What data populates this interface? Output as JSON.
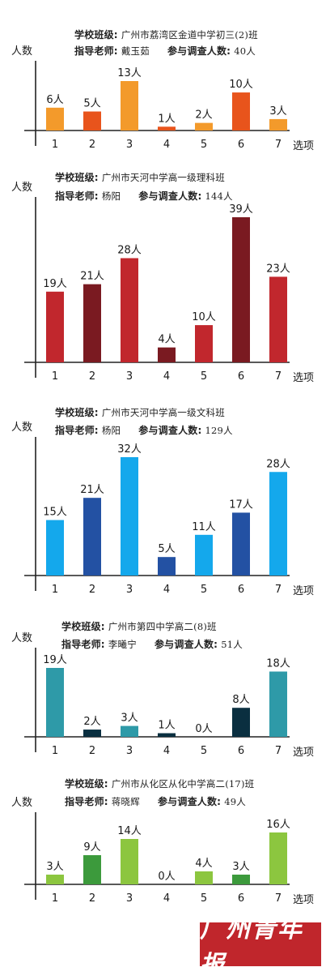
{
  "labels": {
    "school_prefix": "学校班级:",
    "teacher_prefix": "指导老师:",
    "count_prefix": "参与调查人数:"
  },
  "chart_data": [
    {
      "type": "bar",
      "school": "广州市荔湾区金道中学初三(2)班",
      "teacher": "戴玉茹",
      "count": "40人",
      "ylabel": "人数",
      "xlabel": "选项",
      "categories": [
        "1",
        "2",
        "3",
        "4",
        "5",
        "6",
        "7"
      ],
      "values": [
        6,
        5,
        13,
        1,
        2,
        10,
        3
      ],
      "value_labels": [
        "6人",
        "5人",
        "13人",
        "1人",
        "2人",
        "10人",
        "3人"
      ],
      "colors": [
        "#f39a2b",
        "#e8541c",
        "#f39a2b",
        "#e8541c",
        "#f39a2b",
        "#e8541c",
        "#f39a2b"
      ]
    },
    {
      "type": "bar",
      "school": "广州市天河中学高一级理科班",
      "teacher": "杨阳",
      "count": "144人",
      "ylabel": "人数",
      "xlabel": "选项",
      "categories": [
        "1",
        "2",
        "3",
        "4",
        "5",
        "6",
        "7"
      ],
      "values": [
        19,
        21,
        28,
        4,
        10,
        39,
        23
      ],
      "value_labels": [
        "19人",
        "21人",
        "28人",
        "4人",
        "10人",
        "39人",
        "23人"
      ],
      "colors": [
        "#c1272d",
        "#7a1a21",
        "#c1272d",
        "#7a1a21",
        "#c1272d",
        "#7a1a21",
        "#c1272d"
      ]
    },
    {
      "type": "bar",
      "school": "广州市天河中学高一级文科班",
      "teacher": "杨阳",
      "count": "129人",
      "ylabel": "人数",
      "xlabel": "选项",
      "categories": [
        "1",
        "2",
        "3",
        "4",
        "5",
        "6",
        "7"
      ],
      "values": [
        15,
        21,
        32,
        5,
        11,
        17,
        28
      ],
      "value_labels": [
        "15人",
        "21人",
        "32人",
        "5人",
        "11人",
        "17人",
        "28人"
      ],
      "colors": [
        "#14a8ec",
        "#2351a3",
        "#14a8ec",
        "#2351a3",
        "#14a8ec",
        "#2351a3",
        "#14a8ec"
      ]
    },
    {
      "type": "bar",
      "school": "广州市第四中学高二(8)班",
      "teacher": "李曦宁",
      "count": "51人",
      "ylabel": "人数",
      "xlabel": "选项",
      "categories": [
        "1",
        "2",
        "3",
        "4",
        "5",
        "6",
        "7"
      ],
      "values": [
        19,
        2,
        3,
        1,
        0,
        8,
        18
      ],
      "value_labels": [
        "19人",
        "2人",
        "3人",
        "1人",
        "0人",
        "8人",
        "18人"
      ],
      "colors": [
        "#2e9aa8",
        "#0a2f40",
        "#2e9aa8",
        "#0a2f40",
        "#2e9aa8",
        "#0a2f40",
        "#2e9aa8"
      ]
    },
    {
      "type": "bar",
      "school": "广州市从化区从化中学高二(17)班",
      "teacher": "蒋晓辉",
      "count": "49人",
      "ylabel": "人数",
      "xlabel": "选项",
      "categories": [
        "1",
        "2",
        "3",
        "4",
        "5",
        "6",
        "7"
      ],
      "values": [
        3,
        9,
        14,
        0,
        4,
        3,
        16
      ],
      "value_labels": [
        "3人",
        "9人",
        "14人",
        "0人",
        "4人",
        "3人",
        "16人"
      ],
      "colors": [
        "#8cc63f",
        "#3c9a3c",
        "#8cc63f",
        "#3c9a3c",
        "#8cc63f",
        "#3c9a3c",
        "#8cc63f"
      ]
    }
  ],
  "footer": {
    "logo_text": "广州青年报"
  }
}
